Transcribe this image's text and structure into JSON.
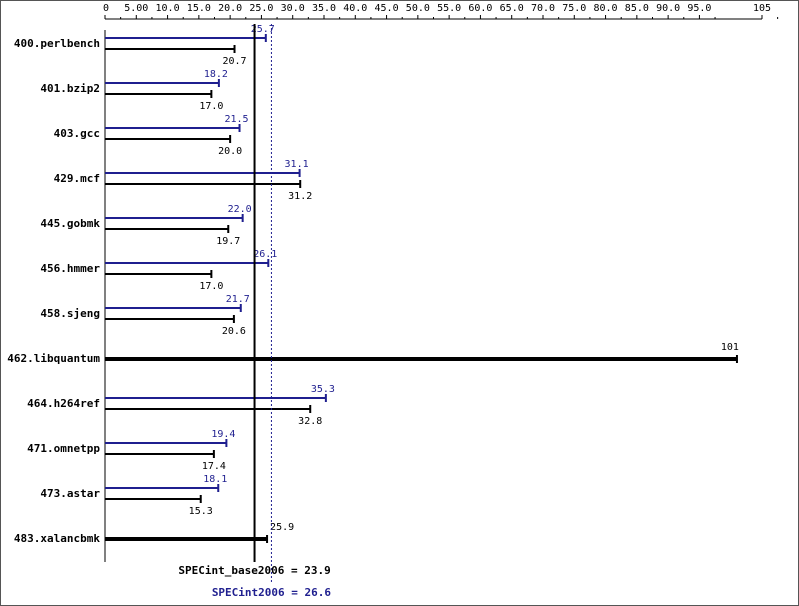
{
  "colors": {
    "peak": "#1f1f8f",
    "base": "#000000",
    "text": "#000000"
  },
  "chart_data": {
    "type": "bar",
    "xlim": [
      0,
      105
    ],
    "x_ticks": [
      "0",
      "5.00",
      "10.0",
      "15.0",
      "20.0",
      "25.0",
      "30.0",
      "35.0",
      "40.0",
      "45.0",
      "50.0",
      "55.0",
      "60.0",
      "65.0",
      "70.0",
      "75.0",
      "80.0",
      "85.0",
      "90.0",
      "95.0",
      "105"
    ],
    "x_tick_values": [
      0,
      5,
      10,
      15,
      20,
      25,
      30,
      35,
      40,
      45,
      50,
      55,
      60,
      65,
      70,
      75,
      80,
      85,
      90,
      95,
      105
    ],
    "categories": [
      "400.perlbench",
      "401.bzip2",
      "403.gcc",
      "429.mcf",
      "445.gobmk",
      "456.hmmer",
      "458.sjeng",
      "462.libquantum",
      "464.h264ref",
      "471.omnetpp",
      "473.astar",
      "483.xalancbmk"
    ],
    "series": [
      {
        "key": "peak",
        "values": [
          25.7,
          18.2,
          21.5,
          31.1,
          22.0,
          26.1,
          21.7,
          null,
          35.3,
          19.4,
          18.1,
          null
        ]
      },
      {
        "key": "base",
        "values": [
          20.7,
          17.0,
          20.0,
          31.2,
          19.7,
          17.0,
          20.6,
          null,
          32.8,
          17.4,
          15.3,
          null
        ]
      }
    ],
    "combined": {
      "values": [
        null,
        null,
        null,
        null,
        null,
        null,
        null,
        101,
        null,
        null,
        null,
        25.9
      ],
      "labels": [
        null,
        null,
        null,
        null,
        null,
        null,
        null,
        "101",
        null,
        null,
        null,
        "25.9"
      ]
    },
    "peak_labels": [
      "25.7",
      "18.2",
      "21.5",
      "31.1",
      "22.0",
      "26.1",
      "21.7",
      null,
      "35.3",
      "19.4",
      "18.1",
      null
    ],
    "base_labels": [
      "20.7",
      "17.0",
      "20.0",
      "31.2",
      "19.7",
      "17.0",
      "20.6",
      null,
      "32.8",
      "17.4",
      "15.3",
      null
    ],
    "summary": {
      "base_label": "SPECint_base2006 = 23.9",
      "base_value": 23.9,
      "peak_label": "SPECint2006 = 26.6",
      "peak_value": 26.6
    }
  }
}
